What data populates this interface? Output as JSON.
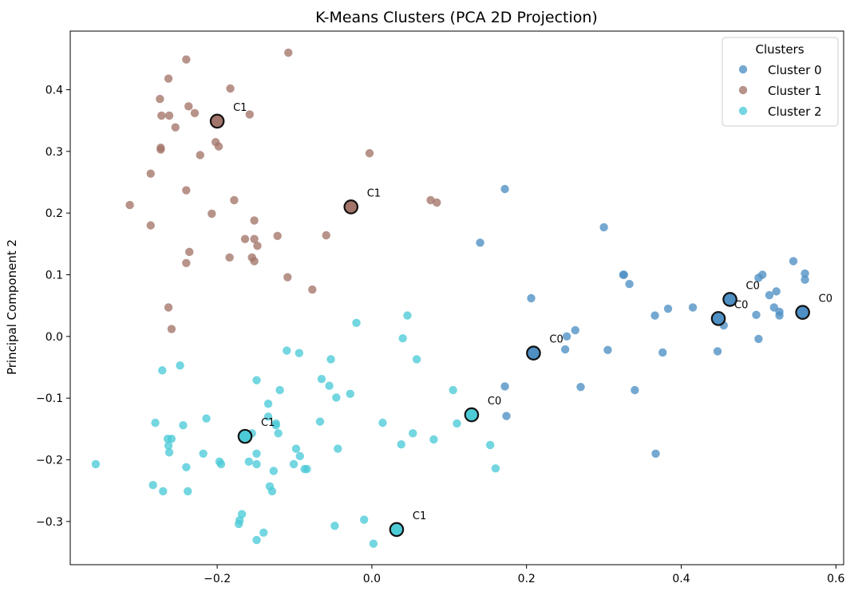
{
  "chart_data": {
    "type": "scatter",
    "title": "K-Means Clusters (PCA 2D Projection)",
    "xlabel": "",
    "ylabel": "Principal Component 2",
    "xlim": [
      -0.39,
      0.61
    ],
    "ylim": [
      -0.37,
      0.495
    ],
    "xticks": [
      -0.2,
      0.0,
      0.2,
      0.4,
      0.6
    ],
    "xtick_labels": [
      "−0.2",
      "0.0",
      "0.2",
      "0.4",
      "0.6"
    ],
    "yticks": [
      -0.3,
      -0.2,
      -0.1,
      0.0,
      0.1,
      0.2,
      0.3,
      0.4
    ],
    "ytick_labels": [
      "−0.3",
      "−0.2",
      "−0.1",
      "0.0",
      "0.1",
      "0.2",
      "0.3",
      "0.4"
    ],
    "grid": false,
    "legend": {
      "title": "Clusters",
      "placement": "top-right"
    },
    "series": [
      {
        "name": "Cluster 0",
        "color": "#4e8fc4",
        "points": [
          [
            0.172,
            0.239
          ],
          [
            0.14,
            0.152
          ],
          [
            0.3,
            0.177
          ],
          [
            0.206,
            0.062
          ],
          [
            0.325,
            0.1
          ],
          [
            0.326,
            0.1
          ],
          [
            0.333,
            0.085
          ],
          [
            0.263,
            0.01
          ],
          [
            0.252,
            0.0
          ],
          [
            0.25,
            -0.021
          ],
          [
            0.305,
            -0.022
          ],
          [
            0.172,
            -0.081
          ],
          [
            0.174,
            -0.129
          ],
          [
            0.27,
            -0.082
          ],
          [
            0.34,
            -0.087
          ],
          [
            0.366,
            0.034
          ],
          [
            0.383,
            0.045
          ],
          [
            0.415,
            0.047
          ],
          [
            0.376,
            -0.026
          ],
          [
            0.367,
            -0.19
          ],
          [
            0.447,
            -0.024
          ],
          [
            0.455,
            0.018
          ],
          [
            0.497,
            0.035
          ],
          [
            0.5,
            -0.004
          ],
          [
            0.5,
            0.095
          ],
          [
            0.505,
            0.1
          ],
          [
            0.514,
            0.067
          ],
          [
            0.523,
            0.073
          ],
          [
            0.52,
            0.047
          ],
          [
            0.527,
            0.04
          ],
          [
            0.527,
            0.034
          ],
          [
            0.545,
            0.122
          ],
          [
            0.56,
            0.102
          ],
          [
            0.56,
            0.092
          ]
        ]
      },
      {
        "name": "Cluster 1",
        "color": "#a37469",
        "points": [
          [
            -0.24,
            0.449
          ],
          [
            -0.108,
            0.46
          ],
          [
            -0.263,
            0.418
          ],
          [
            -0.183,
            0.402
          ],
          [
            -0.274,
            0.385
          ],
          [
            -0.237,
            0.373
          ],
          [
            -0.229,
            0.362
          ],
          [
            -0.272,
            0.358
          ],
          [
            -0.262,
            0.358
          ],
          [
            -0.158,
            0.36
          ],
          [
            -0.254,
            0.339
          ],
          [
            -0.202,
            0.315
          ],
          [
            -0.198,
            0.308
          ],
          [
            -0.273,
            0.306
          ],
          [
            -0.273,
            0.303
          ],
          [
            -0.222,
            0.294
          ],
          [
            -0.003,
            0.297
          ],
          [
            -0.286,
            0.264
          ],
          [
            -0.313,
            0.213
          ],
          [
            -0.24,
            0.237
          ],
          [
            -0.178,
            0.221
          ],
          [
            -0.207,
            0.199
          ],
          [
            0.076,
            0.221
          ],
          [
            0.084,
            0.217
          ],
          [
            -0.286,
            0.18
          ],
          [
            -0.152,
            0.188
          ],
          [
            -0.122,
            0.163
          ],
          [
            -0.059,
            0.164
          ],
          [
            -0.164,
            0.158
          ],
          [
            -0.152,
            0.158
          ],
          [
            -0.148,
            0.147
          ],
          [
            -0.236,
            0.137
          ],
          [
            -0.184,
            0.128
          ],
          [
            -0.155,
            0.128
          ],
          [
            -0.152,
            0.122
          ],
          [
            -0.24,
            0.119
          ],
          [
            -0.109,
            0.096
          ],
          [
            -0.077,
            0.076
          ],
          [
            -0.263,
            0.047
          ],
          [
            -0.259,
            0.012
          ]
        ]
      },
      {
        "name": "Cluster 2",
        "color": "#4ccbd7",
        "points": [
          [
            0.046,
            0.034
          ],
          [
            -0.02,
            0.022
          ],
          [
            0.04,
            -0.003
          ],
          [
            -0.11,
            -0.023
          ],
          [
            -0.094,
            -0.027
          ],
          [
            -0.053,
            -0.037
          ],
          [
            0.058,
            -0.037
          ],
          [
            -0.248,
            -0.047
          ],
          [
            -0.271,
            -0.055
          ],
          [
            -0.149,
            -0.071
          ],
          [
            -0.065,
            -0.069
          ],
          [
            -0.055,
            -0.08
          ],
          [
            -0.119,
            -0.087
          ],
          [
            -0.028,
            -0.093
          ],
          [
            -0.046,
            -0.099
          ],
          [
            0.105,
            -0.087
          ],
          [
            -0.134,
            -0.109
          ],
          [
            -0.134,
            -0.13
          ],
          [
            -0.124,
            -0.141
          ],
          [
            -0.124,
            -0.144
          ],
          [
            -0.155,
            -0.157
          ],
          [
            -0.121,
            -0.157
          ],
          [
            -0.067,
            -0.138
          ],
          [
            0.014,
            -0.14
          ],
          [
            0.11,
            -0.141
          ],
          [
            -0.28,
            -0.14
          ],
          [
            -0.244,
            -0.144
          ],
          [
            -0.214,
            -0.133
          ],
          [
            0.053,
            -0.157
          ],
          [
            0.08,
            -0.167
          ],
          [
            0.038,
            -0.175
          ],
          [
            0.153,
            -0.176
          ],
          [
            -0.264,
            -0.166
          ],
          [
            -0.259,
            -0.166
          ],
          [
            -0.263,
            -0.177
          ],
          [
            -0.262,
            -0.188
          ],
          [
            -0.218,
            -0.19
          ],
          [
            -0.149,
            -0.19
          ],
          [
            -0.098,
            -0.182
          ],
          [
            -0.044,
            -0.182
          ],
          [
            -0.357,
            -0.207
          ],
          [
            -0.197,
            -0.203
          ],
          [
            -0.195,
            -0.207
          ],
          [
            -0.159,
            -0.203
          ],
          [
            -0.149,
            -0.207
          ],
          [
            -0.127,
            -0.218
          ],
          [
            -0.101,
            -0.207
          ],
          [
            -0.093,
            -0.194
          ],
          [
            -0.087,
            -0.215
          ],
          [
            -0.084,
            -0.215
          ],
          [
            -0.24,
            -0.212
          ],
          [
            0.16,
            -0.214
          ],
          [
            -0.283,
            -0.241
          ],
          [
            -0.27,
            -0.251
          ],
          [
            -0.238,
            -0.251
          ],
          [
            -0.132,
            -0.243
          ],
          [
            -0.129,
            -0.251
          ],
          [
            -0.168,
            -0.288
          ],
          [
            -0.171,
            -0.298
          ],
          [
            -0.172,
            -0.304
          ],
          [
            -0.14,
            -0.318
          ],
          [
            -0.149,
            -0.33
          ],
          [
            -0.048,
            -0.307
          ],
          [
            -0.01,
            -0.297
          ],
          [
            0.002,
            -0.336
          ]
        ]
      }
    ],
    "centroids": [
      {
        "label": "C1",
        "x": -0.2,
        "y": 0.349,
        "color": "#a37469"
      },
      {
        "label": "C1",
        "x": -0.027,
        "y": 0.21,
        "color": "#a37469"
      },
      {
        "label": "C1",
        "x": -0.164,
        "y": -0.162,
        "color": "#4ccbd7"
      },
      {
        "label": "C1",
        "x": 0.032,
        "y": -0.313,
        "color": "#4ccbd7"
      },
      {
        "label": "C0",
        "x": 0.129,
        "y": -0.127,
        "color": "#4ccbd7"
      },
      {
        "label": "C0",
        "x": 0.209,
        "y": -0.027,
        "color": "#4e8fc4"
      },
      {
        "label": "C0",
        "x": 0.448,
        "y": 0.029,
        "color": "#4e8fc4"
      },
      {
        "label": "C0",
        "x": 0.463,
        "y": 0.06,
        "color": "#4e8fc4"
      },
      {
        "label": "C0",
        "x": 0.557,
        "y": 0.039,
        "color": "#4e8fc4"
      }
    ]
  }
}
